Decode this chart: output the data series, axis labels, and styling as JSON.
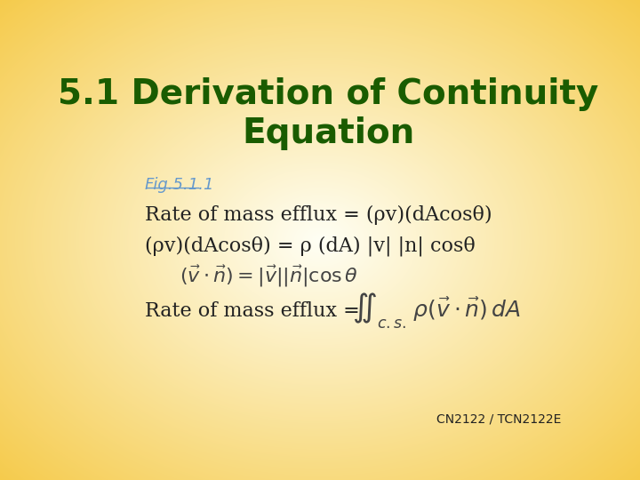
{
  "title_line1": "5.1 Derivation of Continuity",
  "title_line2": "Equation",
  "title_color": "#1a5c00",
  "title_fontsize": 28,
  "title_bold": true,
  "fig_ref": "Fig.5.1.1",
  "fig_ref_color": "#6699cc",
  "fig_ref_fontsize": 13,
  "line1": "Rate of mass efflux = (ρv)(dAcosθ)",
  "line2": "(ρv)(dAcosθ) = ρ (dA) |v| |n| cosθ",
  "line4_prefix": "Rate of mass efflux = ",
  "content_fontsize": 16,
  "italic_fontsize": 15,
  "footer": "CN2122 / TCN2122E",
  "footer_fontsize": 10,
  "figsize": [
    7.2,
    5.4
  ],
  "dpi": 100
}
